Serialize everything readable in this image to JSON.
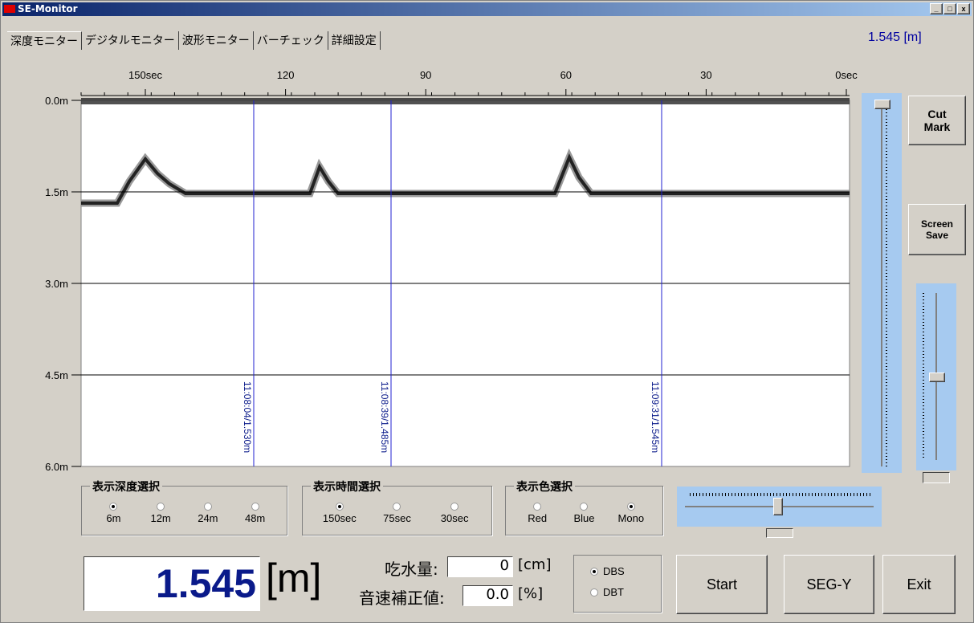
{
  "window": {
    "title": "SE-Monitor"
  },
  "tabs": [
    "深度モニター",
    "デジタルモニター",
    "波形モニター",
    "バーチェック",
    "詳細設定"
  ],
  "top_readout": "1.545 [m]",
  "echogram": {
    "time_labels": [
      "150sec",
      "120",
      "90",
      "60",
      "30",
      "0sec"
    ],
    "depth_labels": [
      "0.0m",
      "1.5m",
      "3.0m",
      "4.5m",
      "6.0m"
    ],
    "cut_marks": [
      "11:08:04/1.530m",
      "11:08:39/1.485m",
      "11:09:31/1.545m"
    ]
  },
  "side_buttons": [
    "Cut\nMark",
    "Screen\nSave"
  ],
  "groups": [
    {
      "title": "表示深度選択",
      "options": [
        "6m",
        "12m",
        "24m",
        "48m"
      ],
      "selected": 0
    },
    {
      "title": "表示時間選択",
      "options": [
        "150sec",
        "75sec",
        "30sec"
      ],
      "selected": 0
    },
    {
      "title": "表示色選択",
      "options": [
        "Red",
        "Blue",
        "Mono"
      ],
      "selected": 2
    }
  ],
  "depth_display": {
    "value": "1.545",
    "unit": "[m]"
  },
  "draft": {
    "label": "吃水量:",
    "value": "0",
    "unit": "[cm]"
  },
  "sound_correction": {
    "label": "音速補正値:",
    "value": "0.0",
    "unit": "[%]"
  },
  "mode": {
    "options": [
      "DBS",
      "DBT"
    ],
    "selected": 0
  },
  "buttons": [
    "Start",
    "SEG-Y",
    "Exit"
  ]
}
